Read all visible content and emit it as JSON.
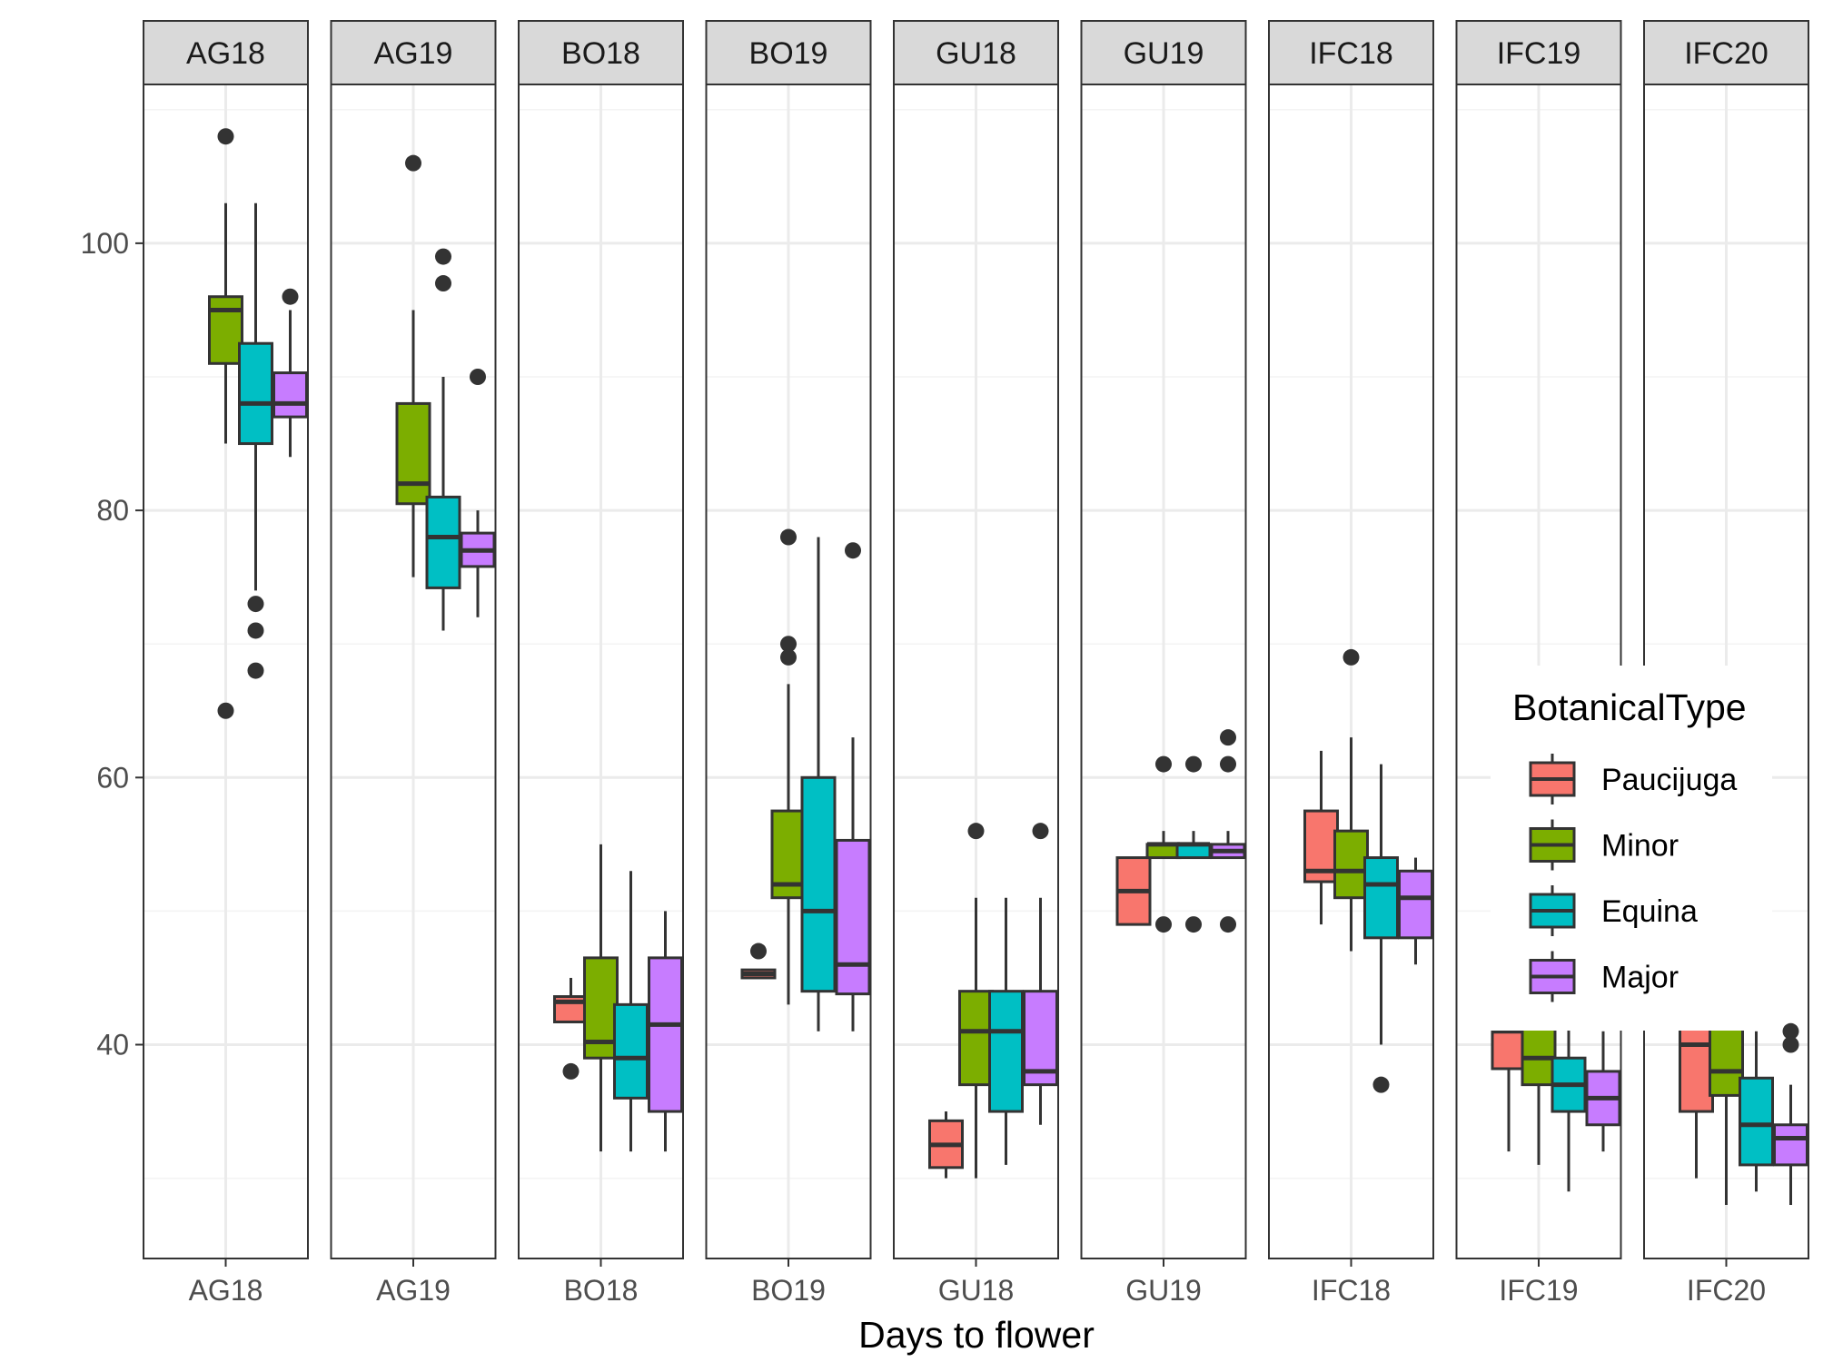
{
  "chart_data": {
    "type": "box",
    "title": "",
    "xlabel": "Days to flower",
    "ylabel": "",
    "ylim": [
      25,
      112
    ],
    "y_ticks": [
      40,
      60,
      80,
      100
    ],
    "grid": true,
    "legend": {
      "title": "BotanicalType",
      "placement": "right",
      "items": [
        "Paucijuga",
        "Minor",
        "Equina",
        "Major"
      ]
    },
    "colors": {
      "Paucijuga": "#F8766D",
      "Minor": "#7CAE00",
      "Equina": "#00BFC4",
      "Major": "#C77CFF",
      "outline": "#333333",
      "strip_fill": "#D9D9D9",
      "grid_major": "#EBEBEB",
      "grid_minor": "#F3F3F3"
    },
    "facets": [
      {
        "label": "AG18",
        "axis_label": "AG18",
        "boxes": [
          {
            "type": "Minor",
            "q1": 91,
            "median": 95,
            "q3": 96,
            "lo": 85,
            "hi": 103,
            "outliers": [
              108,
              65
            ]
          },
          {
            "type": "Equina",
            "q1": 85,
            "median": 88,
            "q3": 92.5,
            "lo": 74,
            "hi": 103,
            "outliers": [
              73,
              71,
              68
            ]
          },
          {
            "type": "Major",
            "q1": 87,
            "median": 88,
            "q3": 90.3,
            "lo": 84,
            "hi": 95,
            "outliers": [
              96
            ]
          }
        ]
      },
      {
        "label": "AG19",
        "axis_label": "AG19",
        "boxes": [
          {
            "type": "Minor",
            "q1": 80.5,
            "median": 82,
            "q3": 88,
            "lo": 75,
            "hi": 95,
            "outliers": [
              106
            ]
          },
          {
            "type": "Equina",
            "q1": 74.2,
            "median": 78,
            "q3": 81,
            "lo": 71,
            "hi": 90,
            "outliers": [
              99,
              97
            ]
          },
          {
            "type": "Major",
            "q1": 75.8,
            "median": 77,
            "q3": 78.3,
            "lo": 72,
            "hi": 80,
            "outliers": [
              90
            ]
          }
        ]
      },
      {
        "label": "BO18",
        "axis_label": "BO18",
        "boxes": [
          {
            "type": "Paucijuga",
            "q1": 41.7,
            "median": 43.2,
            "q3": 43.6,
            "lo": 41.7,
            "hi": 45,
            "outliers": [
              38
            ]
          },
          {
            "type": "Minor",
            "q1": 39,
            "median": 40.2,
            "q3": 46.5,
            "lo": 32,
            "hi": 55,
            "outliers": []
          },
          {
            "type": "Equina",
            "q1": 36,
            "median": 39,
            "q3": 43,
            "lo": 32,
            "hi": 53,
            "outliers": []
          },
          {
            "type": "Major",
            "q1": 35,
            "median": 41.5,
            "q3": 46.5,
            "lo": 32,
            "hi": 50,
            "outliers": []
          }
        ]
      },
      {
        "label": "BO19",
        "axis_label": "BO19",
        "boxes": [
          {
            "type": "Paucijuga",
            "q1": 45,
            "median": 45.3,
            "q3": 45.6,
            "lo": 45,
            "hi": 45.6,
            "outliers": [
              47
            ]
          },
          {
            "type": "Minor",
            "q1": 51,
            "median": 52,
            "q3": 57.5,
            "lo": 43,
            "hi": 67,
            "outliers": [
              78,
              70,
              69
            ]
          },
          {
            "type": "Equina",
            "q1": 44,
            "median": 50,
            "q3": 60,
            "lo": 41,
            "hi": 78,
            "outliers": []
          },
          {
            "type": "Major",
            "q1": 43.8,
            "median": 46,
            "q3": 55.3,
            "lo": 41,
            "hi": 63,
            "outliers": [
              77
            ]
          }
        ]
      },
      {
        "label": "GU18",
        "axis_label": "GU18",
        "boxes": [
          {
            "type": "Paucijuga",
            "q1": 30.8,
            "median": 32.5,
            "q3": 34.3,
            "lo": 30,
            "hi": 35,
            "outliers": []
          },
          {
            "type": "Minor",
            "q1": 37,
            "median": 41,
            "q3": 44,
            "lo": 30,
            "hi": 51,
            "outliers": [
              56
            ]
          },
          {
            "type": "Equina",
            "q1": 35,
            "median": 41,
            "q3": 44,
            "lo": 31,
            "hi": 51,
            "outliers": []
          },
          {
            "type": "Major",
            "q1": 37,
            "median": 38,
            "q3": 44,
            "lo": 34,
            "hi": 51,
            "outliers": [
              56
            ]
          }
        ]
      },
      {
        "label": "GU19",
        "axis_label": "GU19",
        "boxes": [
          {
            "type": "Paucijuga",
            "q1": 49,
            "median": 51.5,
            "q3": 54,
            "lo": 49,
            "hi": 54,
            "outliers": []
          },
          {
            "type": "Minor",
            "q1": 54,
            "median": 55,
            "q3": 55,
            "lo": 54,
            "hi": 56,
            "outliers": [
              61,
              49
            ]
          },
          {
            "type": "Equina",
            "q1": 54,
            "median": 55,
            "q3": 55,
            "lo": 54,
            "hi": 56,
            "outliers": [
              61,
              49
            ]
          },
          {
            "type": "Major",
            "q1": 54,
            "median": 54.5,
            "q3": 55,
            "lo": 54,
            "hi": 56,
            "outliers": [
              63,
              61,
              49
            ]
          }
        ]
      },
      {
        "label": "IFC18",
        "axis_label": "IFC18",
        "boxes": [
          {
            "type": "Paucijuga",
            "q1": 52.2,
            "median": 53,
            "q3": 57.5,
            "lo": 49,
            "hi": 62,
            "outliers": []
          },
          {
            "type": "Minor",
            "q1": 51,
            "median": 53,
            "q3": 56,
            "lo": 47,
            "hi": 63,
            "outliers": [
              69
            ]
          },
          {
            "type": "Equina",
            "q1": 48,
            "median": 52,
            "q3": 54,
            "lo": 40,
            "hi": 61,
            "outliers": [
              37
            ]
          },
          {
            "type": "Major",
            "q1": 48,
            "median": 51,
            "q3": 53,
            "lo": 46,
            "hi": 54,
            "outliers": []
          }
        ]
      },
      {
        "label": "IFC19",
        "axis_label": "IFC19",
        "boxes": [
          {
            "type": "Paucijuga",
            "q1": 38.2,
            "median": 41,
            "q3": 46,
            "lo": 32,
            "hi": 46,
            "outliers": []
          },
          {
            "type": "Minor",
            "q1": 37,
            "median": 39,
            "q3": 42,
            "lo": 31,
            "hi": 47,
            "outliers": []
          },
          {
            "type": "Equina",
            "q1": 35,
            "median": 37,
            "q3": 39,
            "lo": 29,
            "hi": 43,
            "outliers": []
          },
          {
            "type": "Major",
            "q1": 34,
            "median": 36,
            "q3": 38,
            "lo": 32,
            "hi": 41,
            "outliers": []
          }
        ]
      },
      {
        "label": "IFC20",
        "axis_label": "IFC20",
        "boxes": [
          {
            "type": "Paucijuga",
            "q1": 35,
            "median": 40,
            "q3": 44,
            "lo": 30,
            "hi": 44,
            "outliers": []
          },
          {
            "type": "Minor",
            "q1": 36.2,
            "median": 38,
            "q3": 43,
            "lo": 28,
            "hi": 47,
            "outliers": []
          },
          {
            "type": "Equina",
            "q1": 31,
            "median": 34,
            "q3": 37.5,
            "lo": 29,
            "hi": 41,
            "outliers": []
          },
          {
            "type": "Major",
            "q1": 31,
            "median": 33,
            "q3": 34,
            "lo": 28,
            "hi": 37,
            "outliers": [
              41,
              40
            ]
          }
        ]
      }
    ]
  }
}
